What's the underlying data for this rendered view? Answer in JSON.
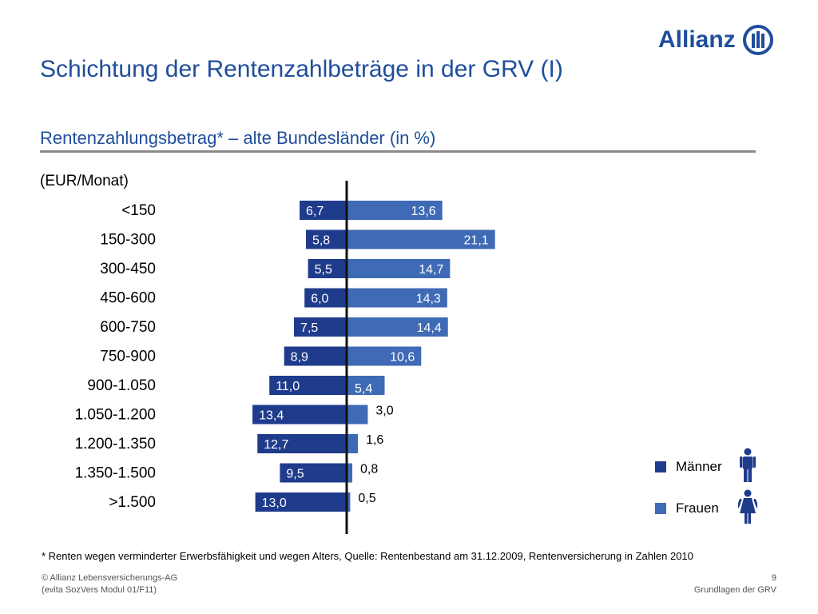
{
  "brand": {
    "name": "Allianz",
    "accent_color": "#1f4e9c",
    "men_color": "#1f3b8c",
    "women_color": "#3f6ab6"
  },
  "title": "Schichtung der Rentenzahlbeträge in der GRV (I)",
  "chart_data": {
    "type": "bar",
    "orientation": "horizontal-diverging",
    "title": "Rentenzahlungsbetrag* – alte Bundesländer (in %)",
    "unit_label": "(EUR/Monat)",
    "categories": [
      "<150",
      "150-300",
      "300-450",
      "450-600",
      "600-750",
      "750-900",
      "900-1.050",
      "1.050-1.200",
      "1.200-1.350",
      "1.350-1.500",
      ">1.500"
    ],
    "series": [
      {
        "name": "Männer",
        "values": [
          6.7,
          5.8,
          5.5,
          6.0,
          7.5,
          8.9,
          11.0,
          13.4,
          12.7,
          9.5,
          13.0
        ],
        "labels": [
          "6,7",
          "5,8",
          "5,5",
          "6,0",
          "7,5",
          "8,9",
          "11,0",
          "13,4",
          "12,7",
          "9,5",
          "13,0"
        ]
      },
      {
        "name": "Frauen",
        "values": [
          13.6,
          21.1,
          14.7,
          14.3,
          14.4,
          10.6,
          5.4,
          3.0,
          1.6,
          0.8,
          0.5
        ],
        "labels": [
          "13,6",
          "21,1",
          "14,7",
          "14,3",
          "14,4",
          "10,6",
          "5,4",
          "3,0",
          "1,6",
          "0,8",
          "0,5"
        ]
      }
    ],
    "legend": {
      "position": "bottom-right",
      "entries": [
        "Männer",
        "Frauen"
      ]
    },
    "grid": false
  },
  "legend_icons": [
    "man-icon",
    "woman-icon"
  ],
  "footnote": "*   Renten wegen verminderter Erwerbsfähigkeit und wegen Alters, Quelle: Rentenbestand am 31.12.2009, Rentenversicherung in Zahlen 2010",
  "footer": {
    "copyright": "© Allianz Lebensversicherungs-AG",
    "module": "(evita SozVers Modul 01/F11)",
    "page_number": "9",
    "section": "Grundlagen der GRV"
  }
}
